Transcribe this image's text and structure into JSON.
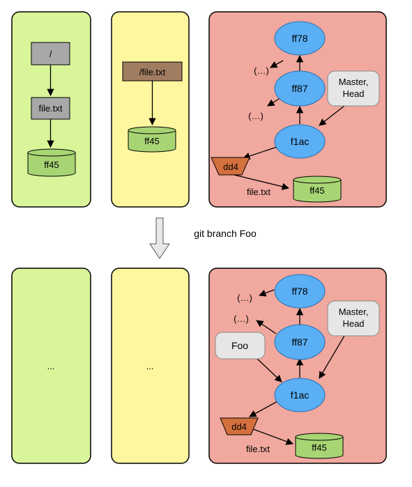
{
  "top": {
    "panel1": {
      "root": "/",
      "file": "file.txt",
      "blob": "ff45"
    },
    "panel2": {
      "path": "/file.txt",
      "blob": "ff45"
    },
    "panel3": {
      "commit_top": "ff78",
      "commit_mid": "ff87",
      "commit_head": "f1ac",
      "ellipsis_1": "(…)",
      "ellipsis_2": "(…)",
      "master_head_line1": "Master,",
      "master_head_line2": "Head",
      "tree": "dd4",
      "file_label": "file.txt",
      "blob": "ff45"
    }
  },
  "transition": {
    "label": "git branch Foo"
  },
  "bottom": {
    "panel1": {
      "ellipsis": "..."
    },
    "panel2": {
      "ellipsis": "..."
    },
    "panel3": {
      "commit_top": "ff78",
      "commit_mid": "ff87",
      "commit_head": "f1ac",
      "ellipsis_1": "(…)",
      "ellipsis_2": "(…)",
      "foo": "Foo",
      "master_head_line1": "Master,",
      "master_head_line2": "Head",
      "tree": "dd4",
      "file_label": "file.txt",
      "blob": "ff45"
    }
  },
  "colors": {
    "panel_green": "#d8f59a",
    "panel_yellow": "#fff79f",
    "panel_red": "#f1a89e",
    "node_blue": "#5aaff5",
    "blob_green": "#a8d574",
    "tree_orange": "#d4703d",
    "gray_box": "#a8a8a8",
    "brown_box": "#a07c60",
    "label_gray": "#e6e6e6"
  }
}
